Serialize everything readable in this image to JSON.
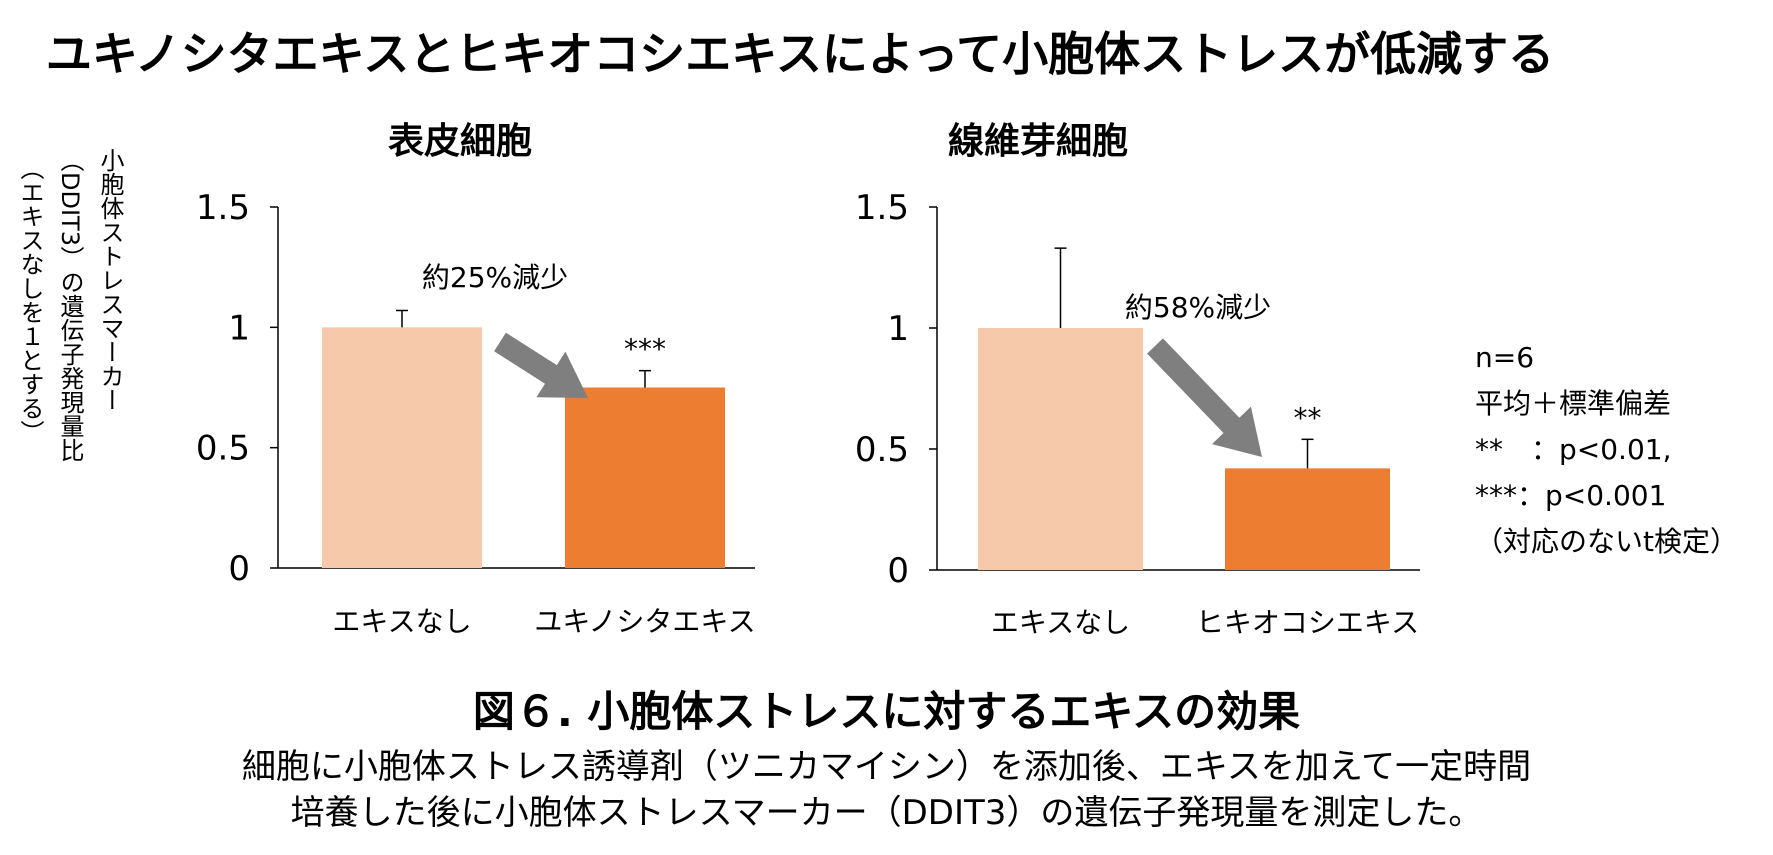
{
  "title": "ユキノシタエキスとヒキオコシエキスによって小胞体ストレスが低減する",
  "ylabel": {
    "line1": "小胞体ストレスマーカー",
    "line2": "（DDIT3）の遺伝子発現量比",
    "line3": "（エキスなしを１とする）"
  },
  "legend": {
    "n": "n=6",
    "stat": "平均＋標準偏差",
    "p2": "**　：p<0.01,",
    "p3": "***：p<0.001",
    "test": "（対応のないt検定）"
  },
  "figure_caption": "図６. 小胞体ストレスに対するエキスの効果",
  "description": {
    "line1": "細胞に小胞体ストレス誘導剤（ツニカマイシン）を添加後、エキスを加えて一定時間",
    "line2": "培養した後に小胞体ストレスマーカー（DDIT3）の遺伝子発現量を測定した。"
  },
  "colors": {
    "control": "#F7C9AB",
    "treated": "#ED7D31",
    "arrow": "#7F7F7F",
    "axis": "#000000"
  },
  "chart_data": [
    {
      "type": "bar",
      "title": "表皮細胞",
      "categories": [
        "エキスなし",
        "ユキノシタエキス"
      ],
      "values": [
        1.0,
        0.75
      ],
      "errors": [
        0.07,
        0.07
      ],
      "significance": [
        "",
        "***"
      ],
      "annotation": "約25%減少",
      "yticks": [
        "1.5",
        "1",
        "0.5",
        "0"
      ],
      "ylim": [
        0,
        1.5
      ]
    },
    {
      "type": "bar",
      "title": "線維芽細胞",
      "categories": [
        "エキスなし",
        "ヒキオコシエキス"
      ],
      "values": [
        1.0,
        0.42
      ],
      "errors": [
        0.33,
        0.12
      ],
      "significance": [
        "",
        "**"
      ],
      "annotation": "約58%減少",
      "yticks": [
        "1.5",
        "1",
        "0.5",
        "0"
      ],
      "ylim": [
        0,
        1.5
      ]
    }
  ]
}
